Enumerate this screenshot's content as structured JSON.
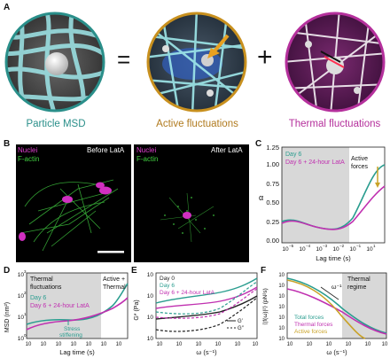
{
  "panels": {
    "A": {
      "label": "A",
      "captions": [
        "Particle MSD",
        "Active fluctuations",
        "Thermal fluctuations"
      ],
      "ops": [
        "=",
        "+"
      ],
      "colors": {
        "msd": "#2a8f8a",
        "active": "#b07a1e",
        "thermal": "#b5309c"
      }
    },
    "B": {
      "label": "B",
      "left": {
        "nuclei": "Nuclei",
        "factin": "F-actin",
        "title": "Before LatA"
      },
      "right": {
        "nuclei": "Nuclei",
        "factin": "F-actin",
        "title": "After LatA"
      }
    },
    "C": {
      "label": "C",
      "legend": [
        "Day 6",
        "Day 6 + 24-hour LatA"
      ],
      "annot": "Active\nforces",
      "ylabel": "α",
      "xlabel": "Lag time (s)",
      "yticks": [
        "0.00",
        "0.25",
        "0.50",
        "0.75",
        "1.00",
        "1.25"
      ],
      "xticks": [
        "10",
        "10",
        "10",
        "10",
        "10",
        "10"
      ],
      "xexp": [
        "−5",
        "−4",
        "−3",
        "−2",
        "−1",
        "0"
      ],
      "xexp_last": "1"
    },
    "D": {
      "label": "D",
      "thermal_text": "Thermal\nfluctuations",
      "active_text": "Active +\nThermal",
      "legend": [
        "Day 6",
        "Day 6 + 24-hour LatA"
      ],
      "stress": "Stress\nstiffening",
      "ylabel": "MSD (nm²)",
      "xlabel": "Lag time (s)",
      "yticks": [
        "10",
        "10",
        "10",
        "10"
      ],
      "yexp": [
        "0",
        "1",
        "2",
        "3"
      ],
      "xticks": [
        "10",
        "10",
        "10",
        "10",
        "10",
        "10",
        "10"
      ],
      "xexp": [
        "−5",
        "−4",
        "−3",
        "−2",
        "−1",
        "0",
        "1"
      ]
    },
    "E": {
      "label": "E",
      "legend": [
        "Day 0",
        "Day 6",
        "Day 6 + 24-hour LatA"
      ],
      "glegend": [
        "G′",
        "G″"
      ],
      "ylabel": "G* (Pa)",
      "xlabel": "ω (s⁻¹)",
      "yticks": [
        "10",
        "10",
        "10",
        "10"
      ],
      "yexp": [
        "0",
        "1",
        "2",
        "3"
      ],
      "xticks": [
        "10",
        "10",
        "10",
        "10",
        "10",
        "10"
      ],
      "xexp": [
        "−1",
        "0",
        "1",
        "2",
        "3",
        "4"
      ]
    },
    "F": {
      "label": "F",
      "regime": "Thermal\nregime",
      "slope": "ω⁻¹",
      "legend": [
        "Total forces",
        "Thermal forces",
        "Active forces"
      ],
      "ylabel": "⟨|f(ω)|²⟩ (pN²s)",
      "xlabel": "ω (s⁻¹)",
      "yticks": [
        "10",
        "10",
        "10",
        "10",
        "10",
        "10",
        "10"
      ],
      "yexp": [
        "−6",
        "−5",
        "−4",
        "−3",
        "−2",
        "−1",
        "0"
      ],
      "xticks": [
        "10",
        "10",
        "10",
        "10",
        "10",
        "10"
      ],
      "xexp": [
        "−2",
        "−1",
        "0",
        "1",
        "2",
        "3"
      ]
    }
  },
  "colors": {
    "teal": "#2a9d8f",
    "magenta": "#c030b0",
    "gold": "#c9a227",
    "gray": "#d8d8d8",
    "black": "#222222",
    "green": "#40c840",
    "nuclei": "#d030c0"
  }
}
